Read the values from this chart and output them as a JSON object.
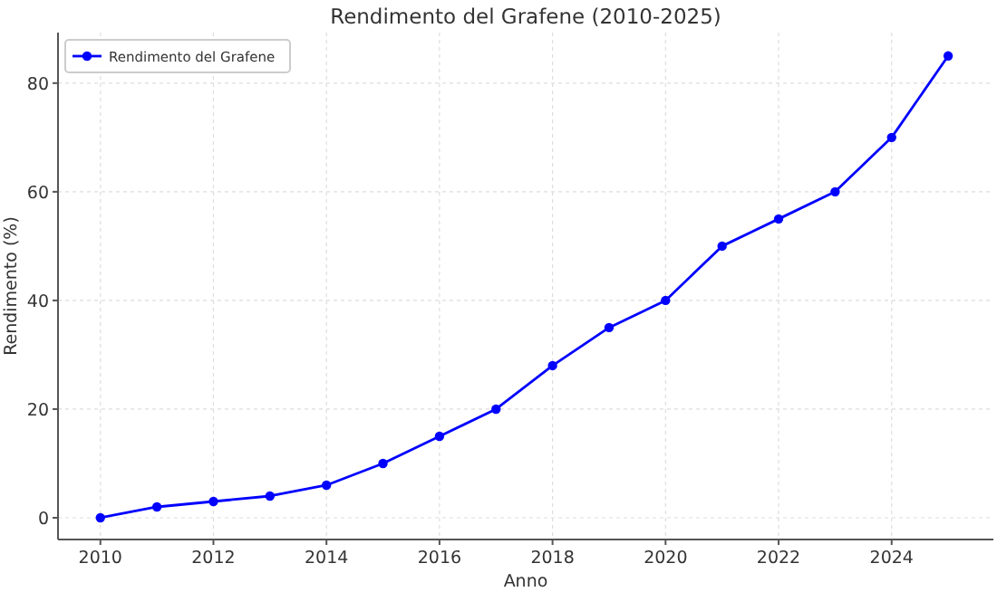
{
  "chart_data": {
    "type": "line",
    "title": "Rendimento del Grafene (2010-2025)",
    "xlabel": "Anno",
    "ylabel": "Rendimento (%)",
    "x": [
      2010,
      2011,
      2012,
      2013,
      2014,
      2015,
      2016,
      2017,
      2018,
      2019,
      2020,
      2021,
      2022,
      2023,
      2024,
      2025
    ],
    "series": [
      {
        "name": "Rendimento del Grafene",
        "color": "#0000ff",
        "values": [
          0,
          2,
          3,
          4,
          6,
          10,
          15,
          20,
          28,
          35,
          40,
          50,
          55,
          60,
          70,
          85
        ]
      }
    ],
    "xlim": [
      2009.25,
      2025.8
    ],
    "xticks": [
      2010,
      2012,
      2014,
      2016,
      2018,
      2020,
      2022,
      2024
    ],
    "ylim": [
      -4,
      89.3
    ],
    "yticks": [
      0,
      20,
      40,
      60,
      80
    ],
    "grid": true,
    "legend": "top left",
    "marker": "circle",
    "line_style": "solid"
  }
}
